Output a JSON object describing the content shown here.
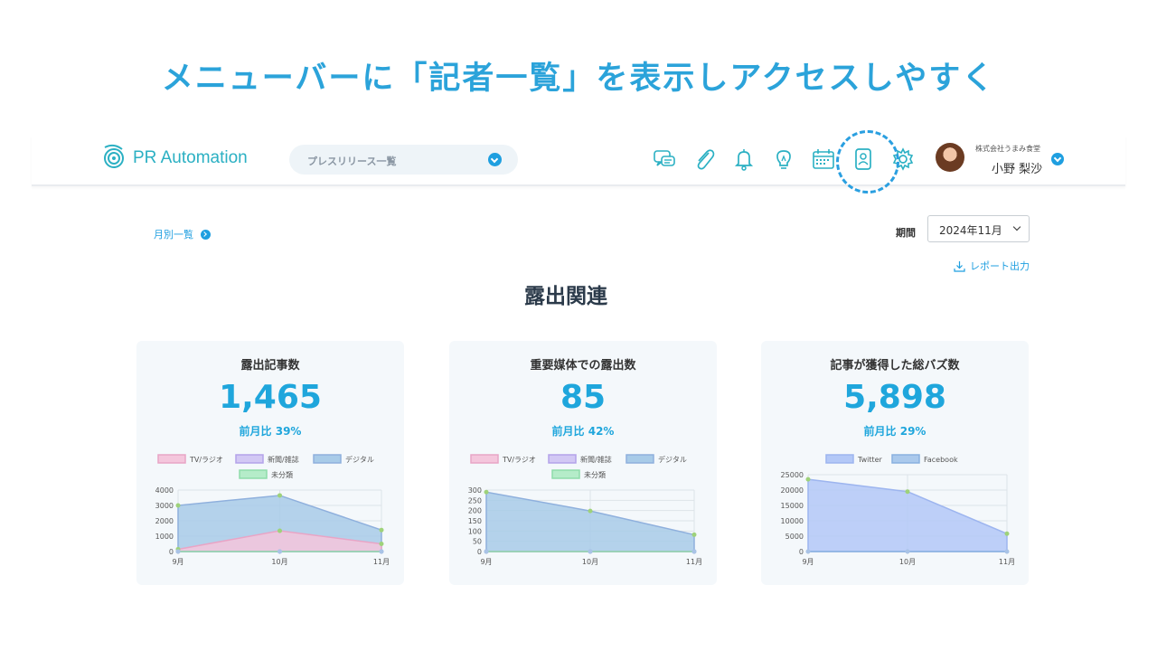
{
  "headline": "メニューバーに「記者一覧」を表示しアクセスしやすく",
  "header": {
    "logo_text": "PR Automation",
    "press_select": "プレスリリース一覧",
    "icons": [
      "chat-icon",
      "paperclip-icon",
      "bell-icon",
      "lightbulb-icon",
      "calendar-icon",
      "journalist-list-icon",
      "gear-icon"
    ],
    "company": "株式会社うまみ食堂",
    "user_name": "小野 梨沙"
  },
  "toolbar": {
    "monthly_link": "月別一覧",
    "period_label": "期間",
    "period_value": "2024年11月",
    "report_link": "レポート出力"
  },
  "section_title": "露出関連",
  "colors": {
    "accent": "#1fa6dc",
    "tv": "#f4c6dc",
    "newspaper": "#d2c8f4",
    "digital": "#a8cbe8",
    "unclassified": "#b5ecc9",
    "twitter": "#b3c8f7",
    "facebook": "#aac9ec"
  },
  "cards": [
    {
      "title": "露出記事数",
      "value": "1,465",
      "ratio": "前月比 39%"
    },
    {
      "title": "重要媒体での露出数",
      "value": "85",
      "ratio": "前月比 42%"
    },
    {
      "title": "記事が獲得した総バズ数",
      "value": "5,898",
      "ratio": "前月比 29%"
    }
  ],
  "chart_data": [
    {
      "type": "area",
      "categories": [
        "9月",
        "10月",
        "11月"
      ],
      "yticks": [
        "0",
        "1000",
        "2000",
        "3000",
        "4000"
      ],
      "ylim": [
        0,
        4000
      ],
      "legend": [
        "TV/ラジオ",
        "新聞/雑誌",
        "デジタル",
        "未分類"
      ],
      "series": [
        {
          "name": "TV/ラジオ",
          "values": [
            150,
            1350,
            500
          ]
        },
        {
          "name": "新聞/雑誌",
          "values": [
            0,
            0,
            0
          ]
        },
        {
          "name": "デジタル",
          "values": [
            3000,
            3650,
            1400
          ]
        },
        {
          "name": "未分類",
          "values": [
            0,
            0,
            0
          ]
        }
      ]
    },
    {
      "type": "area",
      "categories": [
        "9月",
        "10月",
        "11月"
      ],
      "yticks": [
        "0",
        "50",
        "100",
        "150",
        "200",
        "250",
        "300"
      ],
      "ylim": [
        0,
        300
      ],
      "legend": [
        "TV/ラジオ",
        "新聞/雑誌",
        "デジタル",
        "未分類"
      ],
      "series": [
        {
          "name": "TV/ラジオ",
          "values": [
            0,
            0,
            0
          ]
        },
        {
          "name": "新聞/雑誌",
          "values": [
            0,
            0,
            0
          ]
        },
        {
          "name": "デジタル",
          "values": [
            290,
            198,
            82
          ]
        },
        {
          "name": "未分類",
          "values": [
            0,
            0,
            0
          ]
        }
      ]
    },
    {
      "type": "area",
      "categories": [
        "9月",
        "10月",
        "11月"
      ],
      "yticks": [
        "0",
        "5000",
        "10000",
        "15000",
        "20000",
        "25000"
      ],
      "ylim": [
        0,
        25000
      ],
      "legend": [
        "Twitter",
        "Facebook"
      ],
      "series": [
        {
          "name": "Twitter",
          "values": [
            23500,
            19500,
            5800
          ]
        },
        {
          "name": "Facebook",
          "values": [
            0,
            0,
            0
          ]
        }
      ]
    }
  ]
}
